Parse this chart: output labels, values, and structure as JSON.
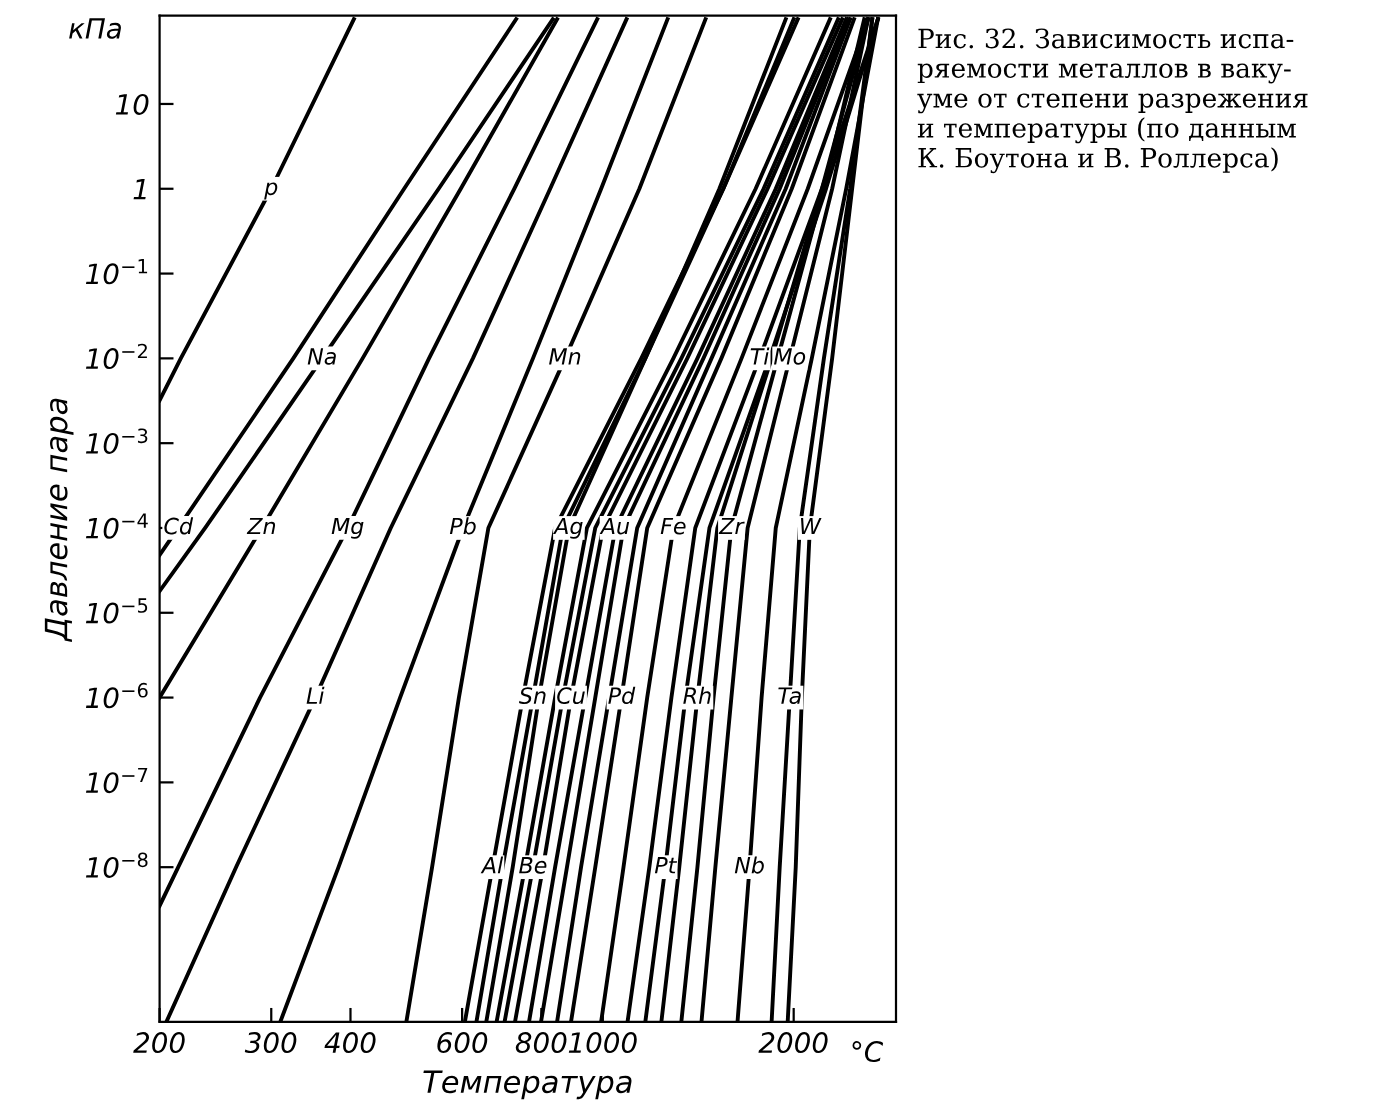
{
  "chart_data": {
    "type": "line",
    "title": "Рис. 32. Зависимость испа-\nряемости металлов в ваку-\nуме от степени разрежения\nи температуры (по данным\nК. Боутона и В. Роллерса)",
    "xlabel": "Температура",
    "ylabel": "Давление пара",
    "annotations": [
      "кПа",
      "°C"
    ],
    "log": "xy",
    "xlim": [
      200,
      2900
    ],
    "xticks": [
      200,
      300,
      400,
      600,
      800,
      1000,
      2000
    ],
    "ylim": [
      1.5e-10,
      110
    ],
    "yticks": [
      {
        "value": 10,
        "label": "10"
      },
      {
        "value": 1,
        "label": "1"
      },
      {
        "value": 0.1,
        "label": "10$^{−1}$"
      },
      {
        "value": 0.01,
        "label": "10$^{−2}$"
      },
      {
        "value": 0.001,
        "label": "10$^{−3}$"
      },
      {
        "value": 0.0001,
        "label": "10$^{−4}$"
      },
      {
        "value": 1e-05,
        "label": "10$^{−5}$"
      },
      {
        "value": 1e-06,
        "label": "10$^{−6}$"
      },
      {
        "value": 1e-07,
        "label": "10$^{−7}$"
      },
      {
        "value": 1e-08,
        "label": "10$^{−8}$"
      }
    ],
    "series": [
      {
        "name": "p",
        "color": "#000000",
        "x": [
          200,
          216,
          300,
          405
        ],
        "values": [
          0.0032,
          0.01,
          1,
          100
        ]
      },
      {
        "name": "Cd",
        "color": "#000000",
        "x": [
          200,
          214,
          325,
          486,
          730
        ],
        "values": [
          4.8e-05,
          0.0001,
          0.01,
          1,
          100
        ]
      },
      {
        "name": "Na",
        "color": "#000000",
        "x": [
          200,
          236,
          361,
          551,
          834
        ],
        "values": [
          1.8e-05,
          0.0001,
          0.01,
          1,
          100
        ]
      },
      {
        "name": "Zn",
        "color": "#000000",
        "x": [
          200,
          290,
          418,
          597,
          847
        ],
        "values": [
          1e-06,
          0.0001,
          0.01,
          1,
          100
        ]
      },
      {
        "name": "Mg",
        "color": "#000000",
        "x": [
          200,
          214,
          288,
          396,
          532,
          725,
          980
        ],
        "values": [
          3.5e-09,
          1e-08,
          1e-06,
          0.0001,
          0.01,
          1,
          100
        ]
      },
      {
        "name": "Li",
        "color": "#000000",
        "x": [
          205,
          264,
          352,
          463,
          624,
          826,
          1090
        ],
        "values": [
          1.5e-10,
          1e-08,
          1e-06,
          0.0001,
          0.01,
          1,
          100
        ]
      },
      {
        "name": "Pb",
        "color": "#000000",
        "x": [
          310,
          383,
          479,
          602,
          776,
          994,
          1265
        ],
        "values": [
          1.5e-10,
          1e-08,
          1e-06,
          0.0001,
          0.01,
          1,
          100
        ]
      },
      {
        "name": "Mn",
        "color": "#000000",
        "x": [
          490,
          538,
          593,
          660,
          872,
          1142,
          1452
        ],
        "values": [
          1.5e-10,
          1e-08,
          1e-06,
          0.0001,
          0.01,
          1,
          100
        ]
      },
      {
        "name": "Al",
        "color": "#000000",
        "x": [
          606,
          670,
          748,
          841,
          1150,
          1549,
          2030
        ],
        "values": [
          1.5e-10,
          1e-08,
          1e-06,
          0.0001,
          0.01,
          1,
          100
        ]
      },
      {
        "name": "Sn",
        "color": "#000000",
        "x": [
          632,
          695,
          776,
          865,
          1167,
          1549,
          2000
        ],
        "values": [
          1.5e-10,
          1e-08,
          1e-06,
          0.0001,
          0.01,
          1,
          100
        ]
      },
      {
        "name": "Ag",
        "color": "#000000",
        "x": [
          655,
          721,
          793,
          884,
          1167,
          1527,
          1943
        ],
        "values": [
          1.5e-10,
          1e-08,
          1e-06,
          0.0001,
          0.01,
          1,
          100
        ]
      },
      {
        "color": "#000000",
        "x": [
          680,
          754,
          841,
          944,
          1292,
          1742,
          2282
        ],
        "values": [
          1.5e-10,
          1e-08,
          1e-06,
          0.0001,
          0.01,
          1,
          100
        ]
      },
      {
        "name": "Be",
        "color": "#000000",
        "x": [
          700,
          776,
          865,
          973,
          1330,
          1793,
          2350
        ],
        "values": [
          1.5e-10,
          1e-08,
          1e-06,
          0.0001,
          0.01,
          1,
          100
        ]
      },
      {
        "name": "Cu",
        "color": "#000000",
        "x": [
          727,
          805,
          891,
          1001,
          1359,
          1819,
          2385
        ],
        "values": [
          1.5e-10,
          1e-08,
          1e-06,
          0.0001,
          0.01,
          1,
          100
        ]
      },
      {
        "name": "Au",
        "color": "#000000",
        "x": [
          765,
          841,
          938,
          1047,
          1410,
          1874,
          2420
        ],
        "values": [
          1.5e-10,
          1e-08,
          1e-06,
          0.0001,
          0.01,
          1,
          100
        ]
      },
      {
        "color": "#000000",
        "x": [
          799,
          878,
          973,
          1078,
          1441,
          1901,
          2438
        ],
        "values": [
          1.5e-10,
          1e-08,
          1e-06,
          0.0001,
          0.01,
          1,
          100
        ]
      },
      {
        "color": "#000000",
        "x": [
          847,
          924,
          1023,
          1133,
          1484,
          1943,
          2455
        ],
        "values": [
          1.5e-10,
          1e-08,
          1e-06,
          0.0001,
          0.01,
          1,
          100
        ]
      },
      {
        "name": "Pd",
        "color": "#000000",
        "x": [
          891,
          973,
          1070,
          1175,
          1538,
          1986,
          2490
        ],
        "values": [
          1.5e-10,
          1e-08,
          1e-06,
          0.0001,
          0.01,
          1,
          100
        ]
      },
      {
        "name": "Fe",
        "color": "#000000",
        "x": [
          994,
          1078,
          1175,
          1292,
          1655,
          2105,
          2620
        ],
        "values": [
          1.5e-10,
          1e-08,
          1e-06,
          0.0001,
          0.01,
          1,
          100
        ]
      },
      {
        "name": "Ti",
        "color": "#000000",
        "x": [
          1094,
          1184,
          1283,
          1399,
          1767,
          2216,
          2715
        ],
        "values": [
          1.5e-10,
          1e-08,
          1e-06,
          0.0001,
          0.01,
          1,
          100
        ]
      },
      {
        "name": "Pt",
        "color": "#000000",
        "x": [
          1167,
          1255,
          1350,
          1473,
          1833,
          2249,
          2715
        ],
        "values": [
          1.5e-10,
          1e-08,
          1e-06,
          0.0001,
          0.01,
          1,
          100
        ]
      },
      {
        "name": "Rh",
        "color": "#000000",
        "x": [
          1237,
          1320,
          1410,
          1516,
          1846,
          2216,
          2620
        ],
        "values": [
          1.5e-10,
          1e-08,
          1e-06,
          0.0001,
          0.01,
          1,
          100
        ]
      },
      {
        "name": "Zr",
        "color": "#000000",
        "x": [
          1330,
          1410,
          1495,
          1595,
          1887,
          2232,
          2584
        ],
        "values": [
          1.5e-10,
          1e-08,
          1e-06,
          0.0001,
          0.01,
          1,
          100
        ]
      },
      {
        "name": "Mo",
        "color": "#000000",
        "x": [
          1431,
          1505,
          1595,
          1692,
          1972,
          2300,
          2620
        ],
        "values": [
          1.5e-10,
          1e-08,
          1e-06,
          0.0001,
          0.01,
          1,
          100
        ]
      },
      {
        "name": "Nb",
        "color": "#000000",
        "x": [
          1631,
          1704,
          1780,
          1874,
          2136,
          2420,
          2715
        ],
        "values": [
          1.5e-10,
          1e-08,
          1e-06,
          0.0001,
          0.01,
          1,
          100
        ]
      },
      {
        "name": "Ta",
        "color": "#000000",
        "x": [
          1846,
          1901,
          1972,
          2045,
          2232,
          2455,
          2660
        ],
        "values": [
          1.5e-10,
          1e-08,
          1e-06,
          0.0001,
          0.01,
          1,
          100
        ]
      },
      {
        "name": "W",
        "color": "#000000",
        "x": [
          1957,
          2015,
          2060,
          2121,
          2300,
          2473,
          2660
        ],
        "values": [
          1.5e-10,
          1e-08,
          1e-06,
          0.0001,
          0.01,
          1,
          100
        ]
      }
    ]
  }
}
